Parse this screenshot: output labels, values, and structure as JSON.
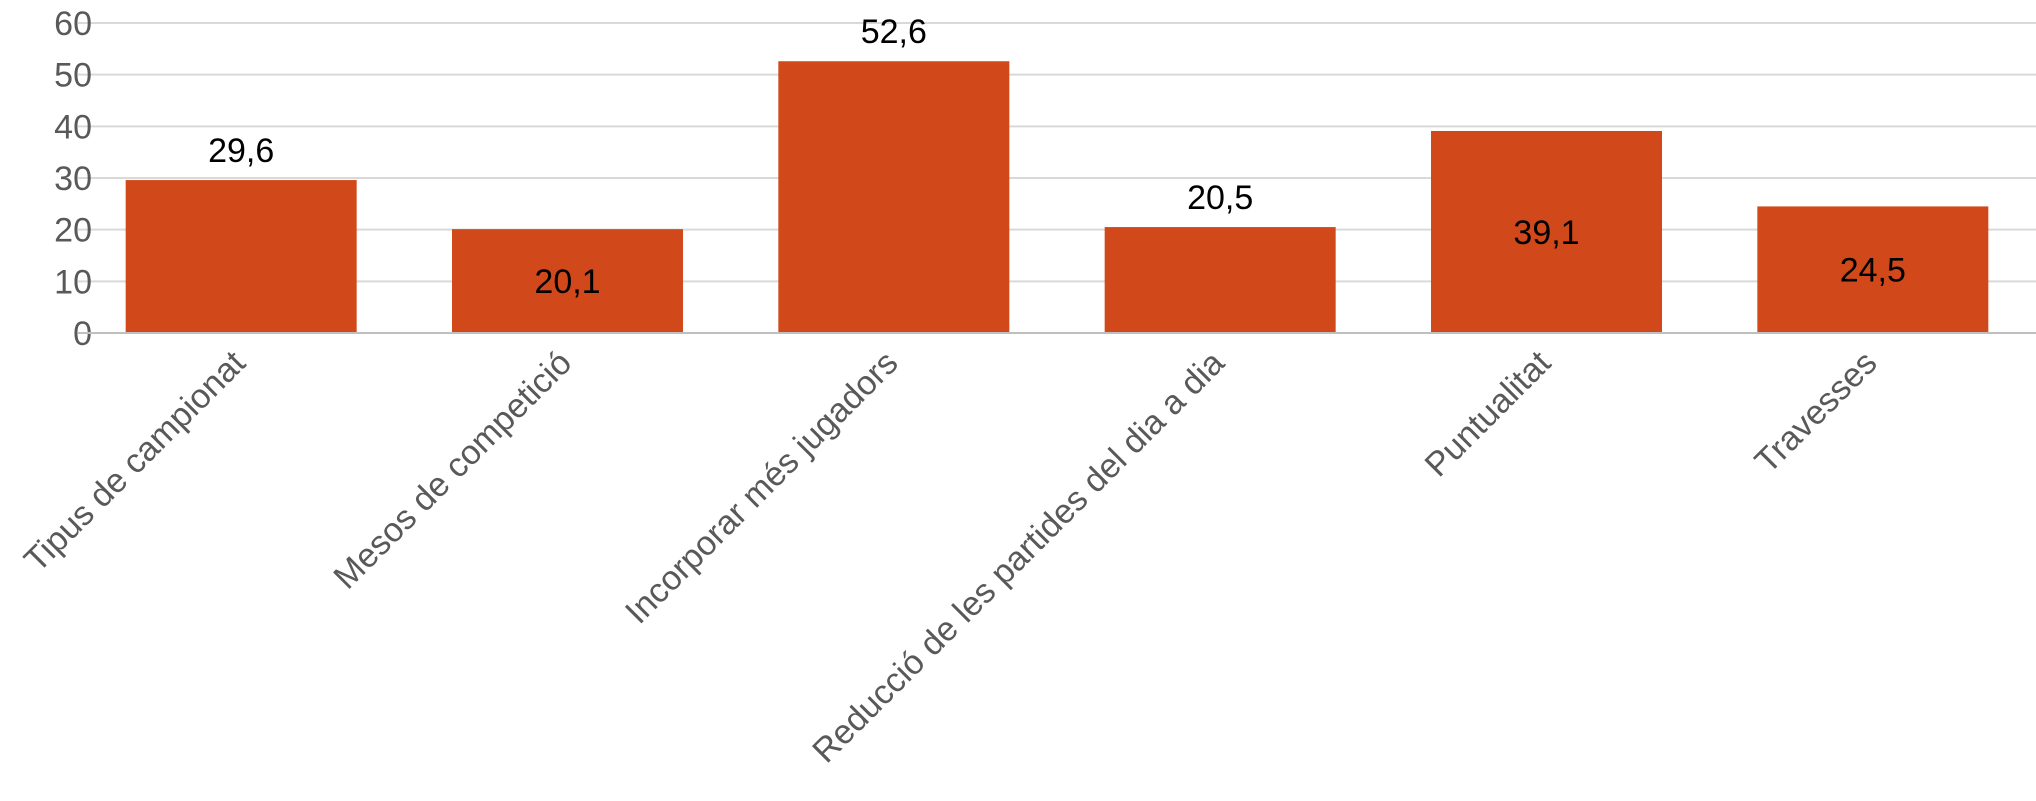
{
  "chart_data": {
    "type": "bar",
    "categories": [
      "Tipus de campionat",
      "Mesos de competició",
      "Incorporar més jugadors",
      "Reducció de les partides del dia a dia",
      "Puntualitat",
      "Travesses"
    ],
    "values": [
      29.6,
      20.1,
      52.6,
      20.5,
      39.1,
      24.5
    ],
    "data_labels": [
      "29,6",
      "20,1",
      "52,6",
      "20,5",
      "39,1",
      "24,5"
    ],
    "data_label_position": [
      "outside",
      "inside",
      "outside",
      "outside",
      "inside",
      "inside"
    ],
    "y_ticks": [
      "0",
      "10",
      "20",
      "30",
      "40",
      "50",
      "60"
    ],
    "ylim": [
      0,
      60
    ],
    "grid": true,
    "legend": "none",
    "bar_color": "#d1481a",
    "title": "",
    "xlabel": "",
    "ylabel": ""
  }
}
